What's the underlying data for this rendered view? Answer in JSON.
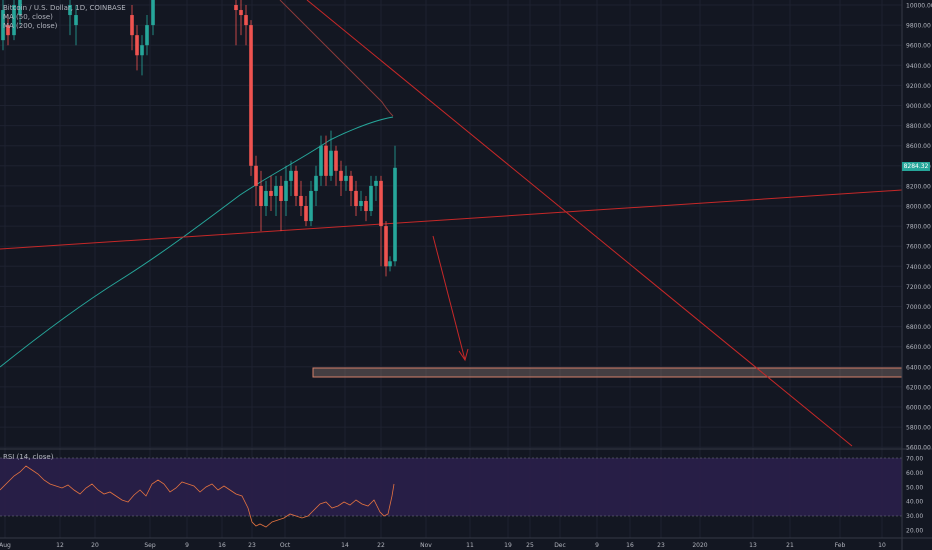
{
  "legend": {
    "symbol": "Bitcoin / U.S. Dollar, 1D, COINBASE",
    "ma50": "MA (50, close)",
    "ma200": "MA (200, close)",
    "rsi": "RSI (14, close)"
  },
  "price_axis": {
    "ticks": [
      "10000.00",
      "9800.00",
      "9600.00",
      "9400.00",
      "9200.00",
      "9000.00",
      "8800.00",
      "8600.00",
      "8400.00",
      "8200.00",
      "8000.00",
      "7800.00",
      "7600.00",
      "7400.00",
      "7200.00",
      "7000.00",
      "6800.00",
      "6600.00",
      "6400.00",
      "6200.00",
      "6000.00",
      "5800.00",
      "5600.00"
    ],
    "current_price": "8284.32"
  },
  "rsi_axis": {
    "ticks": [
      "70.00",
      "60.00",
      "50.00",
      "40.00",
      "30.00",
      "20.00"
    ]
  },
  "time_axis": {
    "labels": [
      "Aug",
      "12",
      "20",
      "Sep",
      "9",
      "16",
      "23",
      "Oct",
      "14",
      "22",
      "Nov",
      "11",
      "19",
      "25",
      "Dec",
      "9",
      "16",
      "23",
      "2020",
      "13",
      "21",
      "Feb",
      "10"
    ]
  },
  "colors": {
    "background": "#131722",
    "up": "#26a69a",
    "down": "#ef5350",
    "ma200": "#26a69a",
    "ma50": "#8b3a3a",
    "trendline": "#c62828",
    "zone": "#a1887f",
    "rsi_band": "#2a1f4a",
    "rsi_line": "#e57340"
  },
  "chart_data": {
    "type": "candlestick",
    "title": "Bitcoin / U.S. Dollar, 1D, COINBASE",
    "ylim": [
      5600,
      10000
    ],
    "last_price": 8284.32,
    "rsi_range": [
      20,
      70
    ],
    "rsi_band": [
      30,
      70
    ],
    "support_zone": [
      6290,
      6380
    ],
    "indicators": [
      "MA (50, close)",
      "MA (200, close)",
      "RSI (14, close)"
    ]
  }
}
